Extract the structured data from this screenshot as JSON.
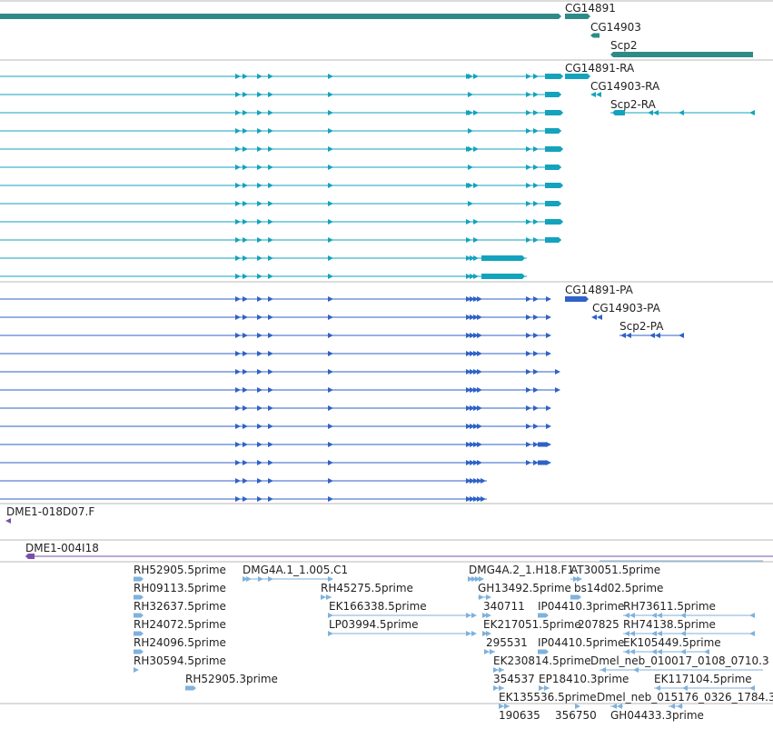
{
  "colors": {
    "gene": "#2e8b87",
    "rna": "#13a3bd",
    "protein": "#2f62c7",
    "contig": "#7b4fa8",
    "est": "#7fb2dc",
    "separator": "#b8b8b8",
    "label": "#222222"
  },
  "tracks": {
    "gene": {
      "labels": [
        "CG14891",
        "CG14903",
        "Scp2"
      ]
    },
    "transcript": {
      "labels": [
        "CG14891-RA",
        "CG14903-RA",
        "Scp2-RA"
      ]
    },
    "protein": {
      "labels": [
        "CG14891-PA",
        "CG14903-PA",
        "Scp2-PA"
      ]
    },
    "contig_a": {
      "labels": [
        "DME1-018D07.F"
      ]
    },
    "contig_b": {
      "labels": [
        "DME1-004I18"
      ]
    },
    "est": {
      "labels": [
        "RH52905.5prime",
        "RH09113.5prime",
        "RH32637.5prime",
        "RH24072.5prime",
        "RH24096.5prime",
        "RH30594.5prime",
        "RH52905.3prime",
        "DMG4A.1_1.005.C1",
        "RH45275.5prime",
        "EK166338.5prime",
        "LP03994.5prime",
        "DMG4A.2_1.H18.F1",
        "AT30051.5prime",
        "GH13492.5prime",
        "bs14d02.5prime",
        "340711",
        "IP04410.3prime",
        "RH73611.5prime",
        "EK217051.5prime",
        "207825",
        "RH74138.5prime",
        "295531",
        "IP04410.5prime",
        "EK105449.5prime",
        "EK230814.5prime",
        "Dmel_neb_010017_0108_0710.3",
        "354537",
        "EP18410.3prime",
        "EK117104.5prime",
        "EK135536.5prime",
        "Dmel_neb_015176_0326_1784.3",
        "190635",
        "356750",
        "GH04433.3prime"
      ]
    }
  }
}
